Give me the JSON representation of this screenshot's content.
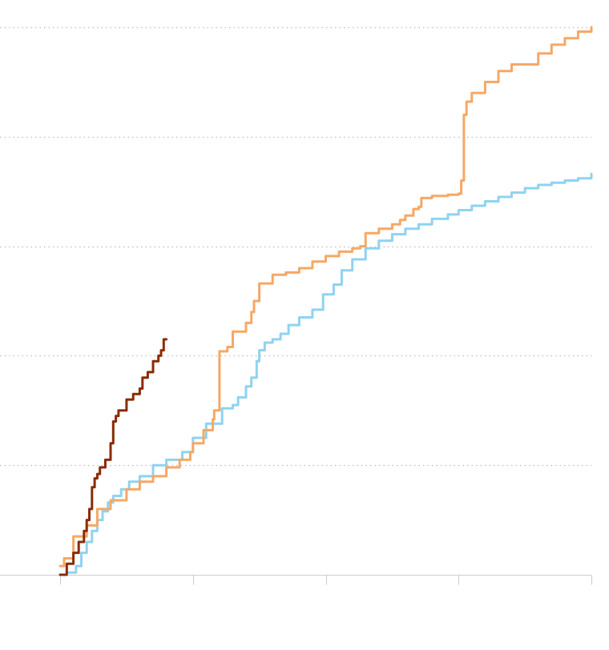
{
  "chart_data": {
    "type": "line",
    "title": "",
    "xlabel": "",
    "ylabel": "",
    "xlim": [
      0,
      4
    ],
    "ylim": [
      0,
      5
    ],
    "grid": true,
    "legend": "none",
    "colors": {
      "grid": "#bdbdbd",
      "axis": "#cccccc",
      "series_light_blue": "#8fd3f0",
      "series_orange": "#f6a865",
      "series_dark_red": "#8b2b05"
    },
    "series": [
      {
        "color": "#8fd3f0",
        "x": [
          0.05,
          0.12,
          0.16,
          0.2,
          0.24,
          0.28,
          0.32,
          0.36,
          0.4,
          0.46,
          0.52,
          0.6,
          0.7,
          0.8,
          0.92,
          1.0,
          1.1,
          1.22,
          1.3,
          1.34,
          1.4,
          1.44,
          1.48,
          1.5,
          1.54,
          1.6,
          1.66,
          1.72,
          1.8,
          1.9,
          1.98,
          2.06,
          2.12,
          2.2,
          2.3,
          2.4,
          2.5,
          2.6,
          2.7,
          2.8,
          2.92,
          3.0,
          3.1,
          3.2,
          3.3,
          3.4,
          3.5,
          3.6,
          3.7,
          3.8,
          3.9,
          4.0
        ],
        "y": [
          0.02,
          0.08,
          0.2,
          0.3,
          0.4,
          0.5,
          0.58,
          0.66,
          0.72,
          0.78,
          0.85,
          0.9,
          1.0,
          1.05,
          1.12,
          1.25,
          1.38,
          1.52,
          1.55,
          1.62,
          1.72,
          1.8,
          1.95,
          2.05,
          2.12,
          2.15,
          2.2,
          2.28,
          2.35,
          2.42,
          2.56,
          2.65,
          2.78,
          2.88,
          2.98,
          3.05,
          3.11,
          3.16,
          3.2,
          3.25,
          3.29,
          3.33,
          3.37,
          3.41,
          3.45,
          3.49,
          3.53,
          3.56,
          3.58,
          3.6,
          3.62,
          3.66
        ]
      },
      {
        "color": "#f6a865",
        "x": [
          0.0,
          0.03,
          0.1,
          0.2,
          0.28,
          0.38,
          0.5,
          0.6,
          0.7,
          0.8,
          0.9,
          0.98,
          1.0,
          1.08,
          1.15,
          1.16,
          1.2,
          1.26,
          1.3,
          1.4,
          1.44,
          1.46,
          1.5,
          1.6,
          1.7,
          1.8,
          1.9,
          2.0,
          2.1,
          2.2,
          2.26,
          2.3,
          2.4,
          2.5,
          2.56,
          2.6,
          2.66,
          2.7,
          2.72,
          2.8,
          2.92,
          3.0,
          3.02,
          3.04,
          3.06,
          3.1,
          3.2,
          3.3,
          3.4,
          3.6,
          3.7,
          3.8,
          3.9,
          4.0
        ],
        "y": [
          0.08,
          0.15,
          0.35,
          0.45,
          0.6,
          0.68,
          0.78,
          0.85,
          0.9,
          0.98,
          1.05,
          1.12,
          1.2,
          1.32,
          1.42,
          1.5,
          2.04,
          2.08,
          2.22,
          2.3,
          2.4,
          2.5,
          2.66,
          2.74,
          2.76,
          2.8,
          2.86,
          2.91,
          2.95,
          2.98,
          3.0,
          3.12,
          3.16,
          3.2,
          3.24,
          3.28,
          3.34,
          3.36,
          3.44,
          3.46,
          3.47,
          3.48,
          3.6,
          4.2,
          4.32,
          4.4,
          4.5,
          4.6,
          4.66,
          4.76,
          4.84,
          4.9,
          4.96,
          5.0
        ]
      },
      {
        "color": "#8b2b05",
        "x": [
          0.0,
          0.05,
          0.1,
          0.14,
          0.18,
          0.2,
          0.22,
          0.24,
          0.26,
          0.28,
          0.3,
          0.34,
          0.38,
          0.4,
          0.42,
          0.44,
          0.46,
          0.5,
          0.55,
          0.6,
          0.62,
          0.66,
          0.7,
          0.74,
          0.76,
          0.78,
          0.8
        ],
        "y": [
          0.0,
          0.1,
          0.2,
          0.3,
          0.4,
          0.5,
          0.6,
          0.8,
          0.88,
          0.92,
          0.98,
          1.05,
          1.2,
          1.4,
          1.45,
          1.5,
          1.5,
          1.6,
          1.65,
          1.7,
          1.8,
          1.85,
          1.95,
          2.0,
          2.05,
          2.15,
          2.15
        ]
      }
    ]
  }
}
